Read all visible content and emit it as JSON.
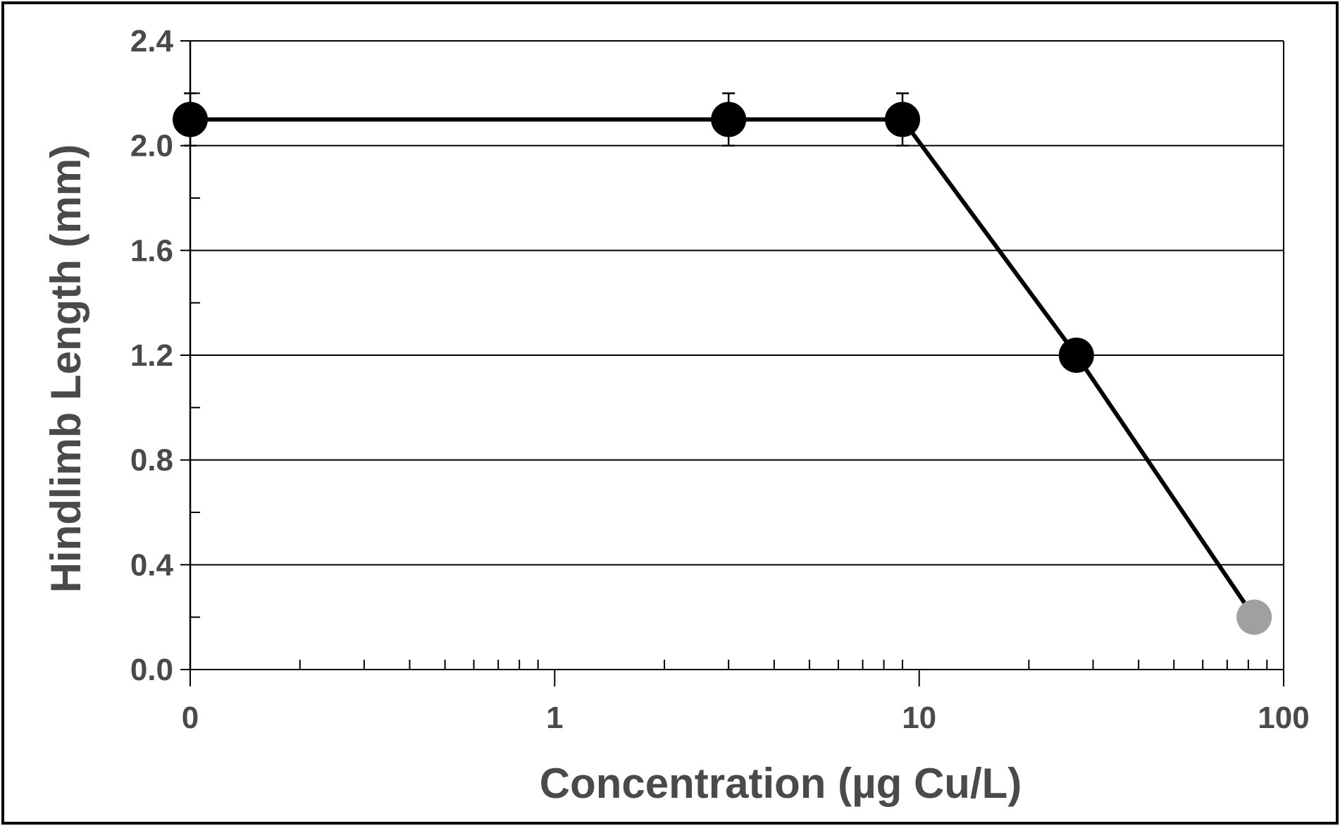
{
  "chart_data": {
    "type": "line",
    "title": "",
    "xlabel": "Concentration (µg Cu/L)",
    "ylabel": "Hindlimb Length (mm)",
    "x_scale": "log",
    "x_ticks": [
      "0",
      "1",
      "10",
      "100"
    ],
    "y_ticks": [
      "0.0",
      "0.4",
      "0.8",
      "1.2",
      "1.6",
      "2.0",
      "2.4"
    ],
    "ylim": [
      0,
      2.4
    ],
    "grid": "horizontal",
    "legend": "none",
    "line_color": "#000000",
    "series": [
      {
        "points": [
          {
            "x": "0",
            "y": 2.1,
            "error": 0.1,
            "color": "#000000"
          },
          {
            "x": 3,
            "y": 2.1,
            "error": 0.1,
            "color": "#000000"
          },
          {
            "x": 9,
            "y": 2.1,
            "error": 0.1,
            "color": "#000000"
          },
          {
            "x": 27,
            "y": 1.2,
            "error": 0,
            "color": "#000000"
          },
          {
            "x": 83,
            "y": 0.2,
            "error": 0,
            "color": "#a0a0a0"
          }
        ]
      }
    ]
  }
}
